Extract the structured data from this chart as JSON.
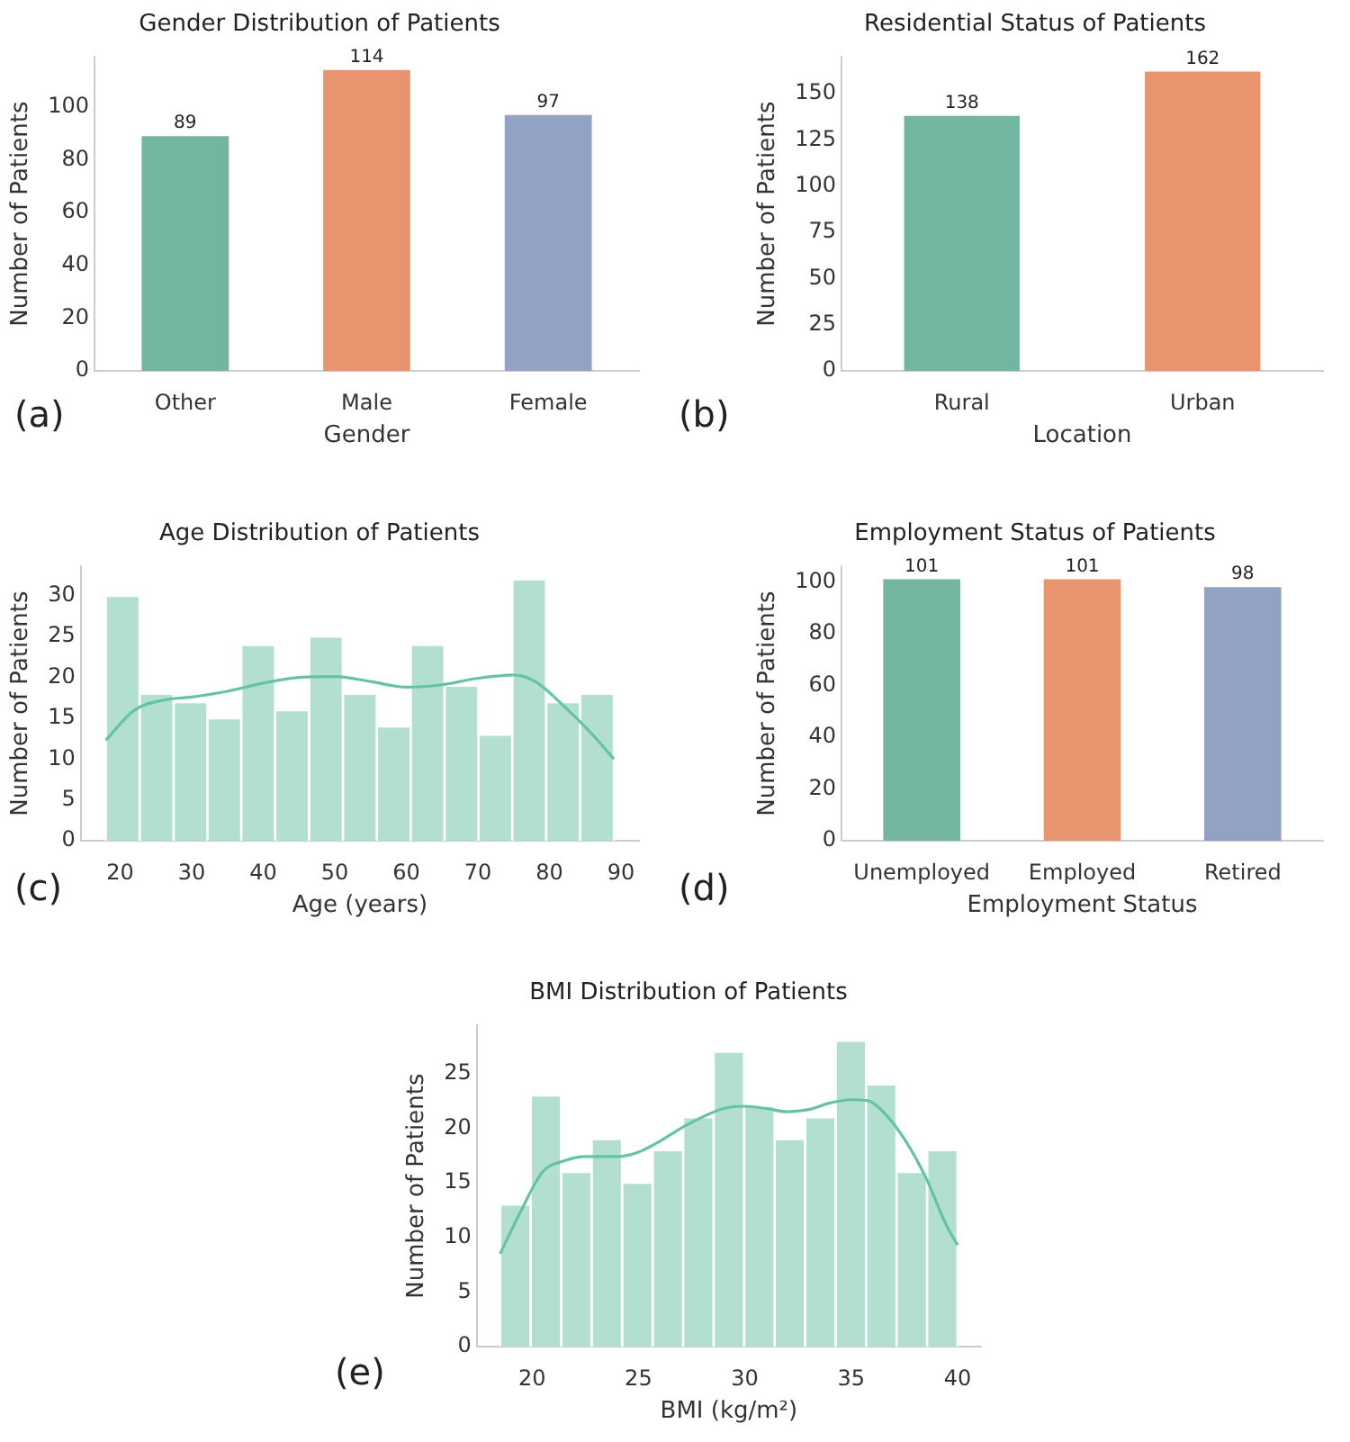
{
  "chart_data": [
    {
      "type": "bar",
      "title": "Gender Distribution of Patients",
      "xlabel": "Gender",
      "ylabel": "Number of Patients",
      "categories": [
        "Other",
        "Male",
        "Female"
      ],
      "values": [
        89,
        114,
        97
      ],
      "colors": [
        "#72b5a0",
        "#e8956f",
        "#92a2c4"
      ],
      "ylim": [
        0,
        119
      ],
      "yticks": [
        0,
        20,
        40,
        60,
        80,
        100
      ],
      "grid": false,
      "data_labels": true,
      "annotations": [
        "(a)"
      ]
    },
    {
      "type": "bar",
      "title": "Residential Status of Patients",
      "xlabel": "Location",
      "ylabel": "Number of Patients",
      "categories": [
        "Rural",
        "Urban"
      ],
      "values": [
        138,
        162
      ],
      "colors": [
        "#72b5a0",
        "#e8956f"
      ],
      "ylim": [
        0,
        170
      ],
      "yticks": [
        0,
        25,
        50,
        75,
        100,
        125,
        150
      ],
      "grid": false,
      "data_labels": true,
      "annotations": [
        "(b)"
      ]
    },
    {
      "type": "histogram",
      "title": "Age Distribution of Patients",
      "xlabel": "Age (years)",
      "ylabel": "Number of Patients",
      "xlim": [
        14.5,
        92.5
      ],
      "xticks": [
        20,
        30,
        40,
        50,
        60,
        70,
        80,
        90
      ],
      "ylim": [
        0,
        33.6
      ],
      "yticks": [
        0,
        5,
        10,
        15,
        20,
        25,
        30
      ],
      "grid": false,
      "annotations": [
        "(c)"
      ],
      "series": [
        {
          "type": "histogram",
          "color": "#b2dfd0",
          "bins": [
            18,
            22.73,
            27.47,
            32.2,
            36.93,
            41.67,
            46.4,
            51.13,
            55.87,
            60.6,
            65.33,
            70.07,
            74.8,
            79.53,
            84.27,
            89
          ],
          "values": [
            30,
            18,
            17,
            15,
            24,
            16,
            25,
            18,
            14,
            24,
            19,
            13,
            32,
            17,
            18
          ]
        },
        {
          "type": "line",
          "color": "#66c2a5",
          "x": [
            18,
            22,
            26,
            30,
            35,
            40,
            45,
            50,
            55,
            60,
            65,
            70,
            75,
            78,
            82,
            86,
            89
          ],
          "values": [
            12.3,
            16,
            17.2,
            17.6,
            18.3,
            19.3,
            20,
            20.1,
            19.5,
            18.8,
            19.1,
            19.9,
            20.3,
            19.5,
            16.5,
            13,
            10
          ]
        }
      ]
    },
    {
      "type": "bar",
      "title": "Employment Status of Patients",
      "xlabel": "Employment Status",
      "ylabel": "Number of Patients",
      "categories": [
        "Unemployed",
        "Employed",
        "Retired"
      ],
      "values": [
        101,
        101,
        98
      ],
      "colors": [
        "#72b5a0",
        "#e8956f",
        "#92a2c4"
      ],
      "ylim": [
        0,
        106
      ],
      "yticks": [
        0,
        20,
        40,
        60,
        80,
        100
      ],
      "grid": false,
      "data_labels": true,
      "annotations": [
        "(d)"
      ]
    },
    {
      "type": "histogram",
      "title": "BMI Distribution of Patients",
      "xlabel": "BMI (kg/m²)",
      "ylabel": "Number of Patients",
      "xlim": [
        17.4,
        41.1
      ],
      "xticks": [
        20,
        25,
        30,
        35,
        40
      ],
      "ylim": [
        0,
        29.4
      ],
      "yticks": [
        0,
        5,
        10,
        15,
        20,
        25
      ],
      "grid": false,
      "annotations": [
        "(e)"
      ],
      "series": [
        {
          "type": "histogram",
          "color": "#b2dfd0",
          "bins": [
            18.5,
            19.93,
            21.37,
            22.8,
            24.23,
            25.67,
            27.1,
            28.53,
            29.97,
            31.4,
            32.83,
            34.27,
            35.7,
            37.13,
            38.57,
            40
          ],
          "values": [
            13,
            23,
            16,
            19,
            15,
            18,
            21,
            27,
            22,
            19,
            21,
            28,
            24,
            16,
            18
          ]
        },
        {
          "type": "line",
          "color": "#66c2a5",
          "x": [
            18.5,
            19.5,
            20.5,
            21.5,
            22.5,
            24,
            25,
            26,
            27,
            28,
            29,
            30,
            31,
            32,
            33,
            34,
            35,
            35.8,
            36.5,
            37.5,
            38.5,
            39.5,
            40
          ],
          "values": [
            8.5,
            12.5,
            16,
            17,
            17.4,
            17.4,
            17.8,
            18.8,
            20,
            21,
            21.8,
            22,
            21.8,
            21.5,
            21.7,
            22.3,
            22.6,
            22.5,
            21.5,
            19,
            15.5,
            11,
            9.3
          ]
        }
      ]
    }
  ]
}
